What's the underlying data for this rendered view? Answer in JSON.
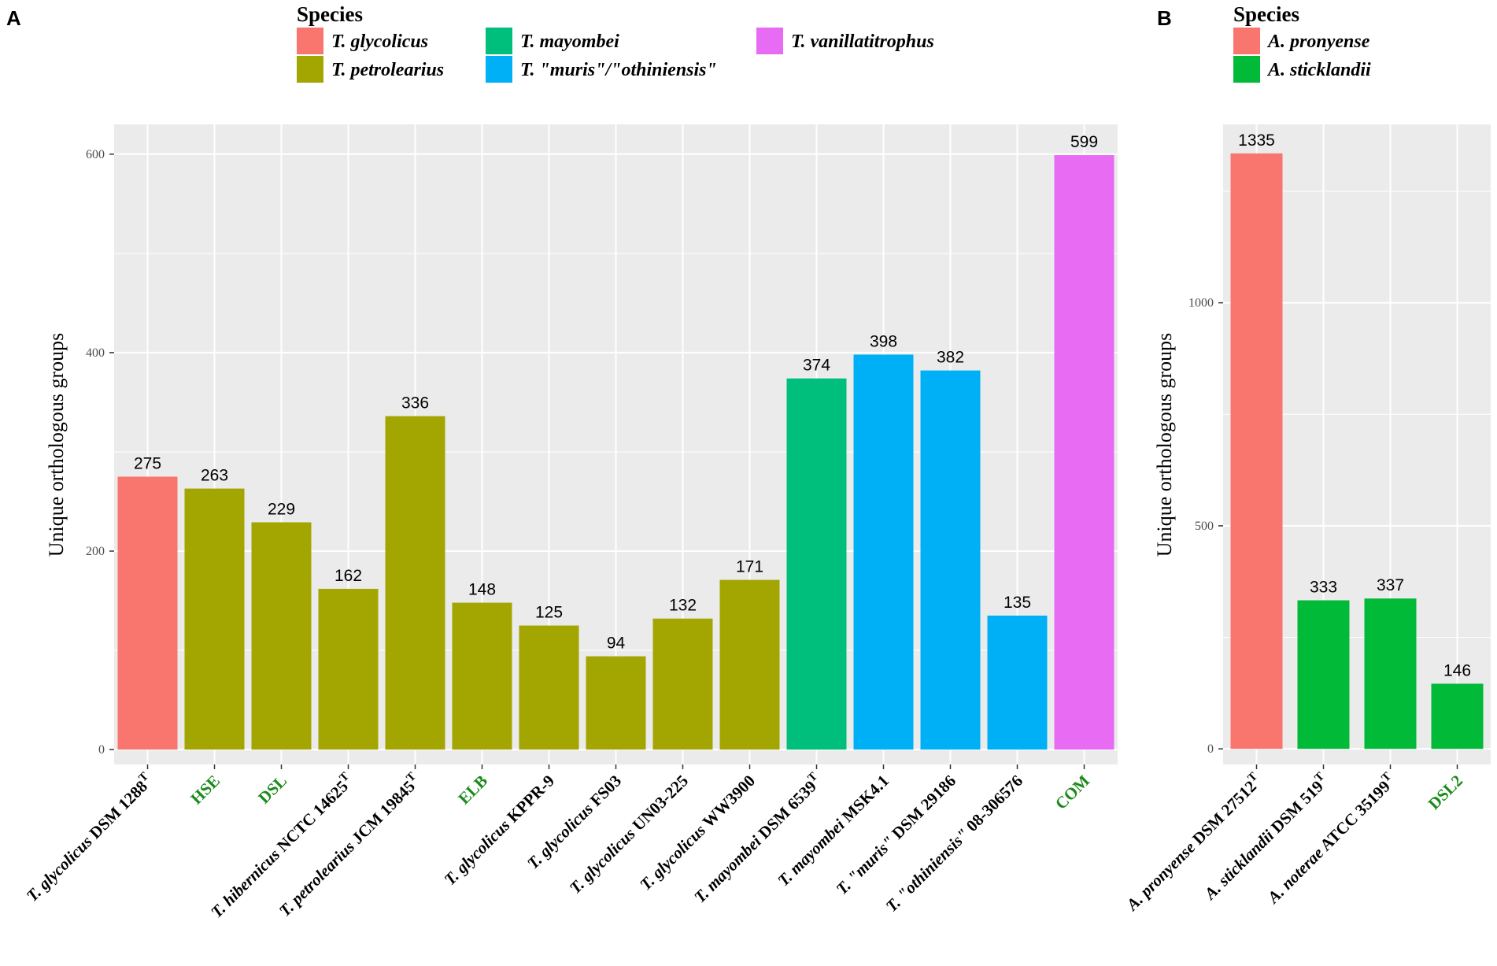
{
  "chart_data": [
    {
      "panel": "A",
      "type": "bar",
      "legend_title": "Species",
      "legend": [
        {
          "name": "T. glycolicus",
          "color": "#F8766D"
        },
        {
          "name": "T. petrolearius",
          "color": "#A3A500"
        },
        {
          "name": "T. mayombei",
          "color": "#00BF7D"
        },
        {
          "name": "T. \"muris\"/\"othiniensis\"",
          "color": "#00B0F6"
        },
        {
          "name": "T. vanillatitrophus",
          "color": "#E76BF3"
        }
      ],
      "ylabel": "Unique orthologous groups",
      "ylim": [
        -15,
        630
      ],
      "yticks": [
        0,
        200,
        400,
        600
      ],
      "categories": [
        {
          "parts": [
            {
              "t": "T. glycolicus",
              "i": true
            },
            {
              "t": " DSM 1288",
              "i": false
            }
          ],
          "sup": "T",
          "color": "#000000"
        },
        {
          "parts": [
            {
              "t": "HSE",
              "i": false
            }
          ],
          "sup": "",
          "color": "#1A8A1A"
        },
        {
          "parts": [
            {
              "t": "DSL",
              "i": false
            }
          ],
          "sup": "",
          "color": "#1A8A1A"
        },
        {
          "parts": [
            {
              "t": "T. hibernicus",
              "i": true
            },
            {
              "t": " NCTC 14625",
              "i": false
            }
          ],
          "sup": "T",
          "color": "#000000"
        },
        {
          "parts": [
            {
              "t": "T. petrolearius",
              "i": true
            },
            {
              "t": " JCM 19845",
              "i": false
            }
          ],
          "sup": "T",
          "color": "#000000"
        },
        {
          "parts": [
            {
              "t": "ELB",
              "i": false
            }
          ],
          "sup": "",
          "color": "#1A8A1A"
        },
        {
          "parts": [
            {
              "t": "T. glycolicus",
              "i": true
            },
            {
              "t": " KPPR-9",
              "i": false
            }
          ],
          "sup": "",
          "color": "#000000"
        },
        {
          "parts": [
            {
              "t": "T. glycolicus",
              "i": true
            },
            {
              "t": " FS03",
              "i": false
            }
          ],
          "sup": "",
          "color": "#000000"
        },
        {
          "parts": [
            {
              "t": "T. glycolicus",
              "i": true
            },
            {
              "t": " UN03-225",
              "i": false
            }
          ],
          "sup": "",
          "color": "#000000"
        },
        {
          "parts": [
            {
              "t": "T. glycolicus",
              "i": true
            },
            {
              "t": " WW3900",
              "i": false
            }
          ],
          "sup": "",
          "color": "#000000"
        },
        {
          "parts": [
            {
              "t": "T. mayombei",
              "i": true
            },
            {
              "t": " DSM 6539",
              "i": false
            }
          ],
          "sup": "T",
          "color": "#000000"
        },
        {
          "parts": [
            {
              "t": "T. mayombei",
              "i": true
            },
            {
              "t": " MSK4.1",
              "i": false
            }
          ],
          "sup": "",
          "color": "#000000"
        },
        {
          "parts": [
            {
              "t": "T. \"muris\"",
              "i": true
            },
            {
              "t": " DSM 29186",
              "i": false
            }
          ],
          "sup": "",
          "color": "#000000"
        },
        {
          "parts": [
            {
              "t": "T. \"othiniensis\"",
              "i": true
            },
            {
              "t": " 08-306576",
              "i": false
            }
          ],
          "sup": "",
          "color": "#000000"
        },
        {
          "parts": [
            {
              "t": "COM",
              "i": false
            }
          ],
          "sup": "",
          "color": "#1A8A1A"
        }
      ],
      "values": [
        275,
        263,
        229,
        162,
        336,
        148,
        125,
        94,
        132,
        171,
        374,
        398,
        382,
        135,
        599
      ],
      "value_labels": [
        "275",
        "263",
        "229",
        "162",
        "336",
        "148",
        "125",
        "94",
        "132",
        "171",
        "374",
        "398",
        "382",
        "135",
        "599"
      ],
      "colors": [
        "#F8766D",
        "#A3A500",
        "#A3A500",
        "#A3A500",
        "#A3A500",
        "#A3A500",
        "#A3A500",
        "#A3A500",
        "#A3A500",
        "#A3A500",
        "#00BF7D",
        "#00B0F6",
        "#00B0F6",
        "#00B0F6",
        "#E76BF3"
      ]
    },
    {
      "panel": "B",
      "type": "bar",
      "legend_title": "Species",
      "legend": [
        {
          "name": "A. pronyense",
          "color": "#F8766D"
        },
        {
          "name": "A. sticklandii",
          "color": "#00BA38"
        }
      ],
      "ylabel": "Unique orthologous groups",
      "ylim": [
        -35,
        1400
      ],
      "yticks": [
        0,
        500,
        1000
      ],
      "categories": [
        {
          "parts": [
            {
              "t": "A. pronyense",
              "i": true
            },
            {
              "t": " DSM 27512",
              "i": false
            }
          ],
          "sup": "T",
          "color": "#000000"
        },
        {
          "parts": [
            {
              "t": "A. sticklandii",
              "i": true
            },
            {
              "t": " DSM 519",
              "i": false
            }
          ],
          "sup": "T",
          "color": "#000000"
        },
        {
          "parts": [
            {
              "t": "A. noterae",
              "i": true
            },
            {
              "t": " ATCC 35199",
              "i": false
            }
          ],
          "sup": "T",
          "color": "#000000"
        },
        {
          "parts": [
            {
              "t": "DSL2",
              "i": false
            }
          ],
          "sup": "",
          "color": "#1A8A1A"
        }
      ],
      "values": [
        1335,
        333,
        337,
        146
      ],
      "value_labels": [
        "1335",
        "333",
        "337",
        "146"
      ],
      "colors": [
        "#F8766D",
        "#00BA38",
        "#00BA38",
        "#00BA38"
      ]
    }
  ]
}
